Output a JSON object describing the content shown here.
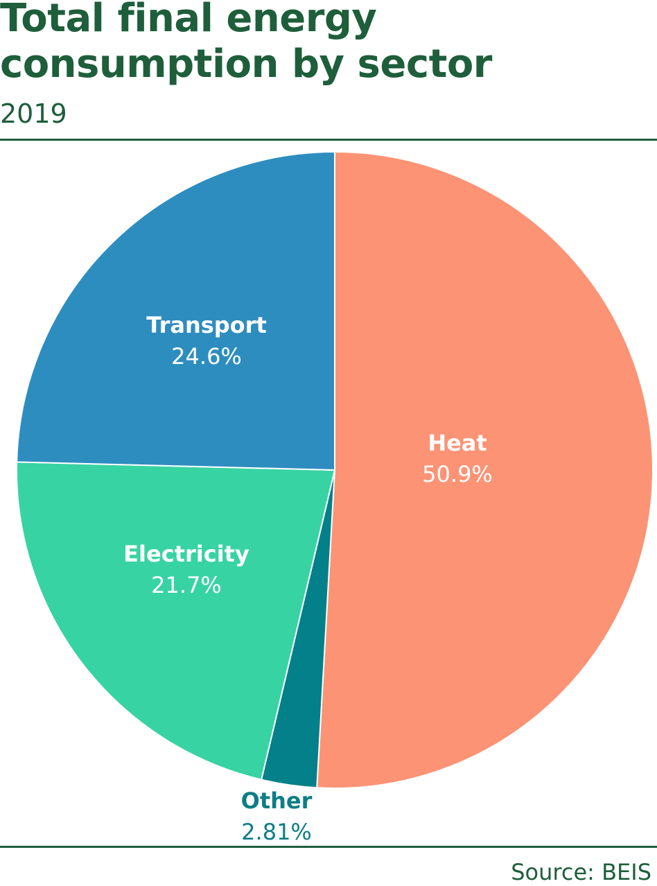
{
  "header": {
    "title": "Total final energy consumption by sector",
    "subtitle": "2019"
  },
  "footer": {
    "source": "Source: BEIS"
  },
  "colors": {
    "brand_green": "#1e5e3b",
    "heat": "#fc9375",
    "other": "#038089",
    "electricity": "#38d3a3",
    "transport": "#2e8dbf"
  },
  "chart_data": {
    "type": "pie",
    "title": "Total final energy consumption by sector",
    "subtitle": "2019",
    "slices": [
      {
        "name": "Heat",
        "label": "50.9%",
        "value": 50.9,
        "color": "#fc9375",
        "label_color": "#ffffff"
      },
      {
        "name": "Other",
        "label": "2.81%",
        "value": 2.81,
        "color": "#038089",
        "label_color": "#0e7d84"
      },
      {
        "name": "Electricity",
        "label": "21.7%",
        "value": 21.7,
        "color": "#38d3a3",
        "label_color": "#ffffff"
      },
      {
        "name": "Transport",
        "label": "24.6%",
        "value": 24.6,
        "color": "#2e8dbf",
        "label_color": "#ffffff"
      }
    ],
    "start_angle": "12 o'clock",
    "direction": "clockwise",
    "legend": "none"
  }
}
